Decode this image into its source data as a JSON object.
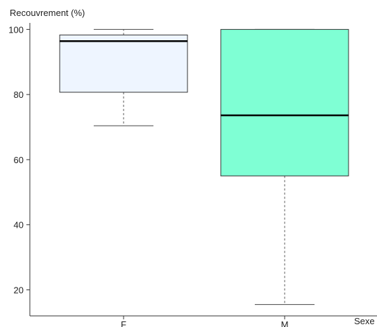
{
  "chart_data": {
    "type": "boxplot",
    "ylabel": "Recouvrement (%)",
    "xlabel": "Sexe",
    "ylim": [
      12,
      102
    ],
    "yticks": [
      20,
      40,
      60,
      80,
      100
    ],
    "categories": [
      "F",
      "M"
    ],
    "boxes": [
      {
        "category": "F",
        "whisker_low": 70.4,
        "q1": 80.7,
        "median": 96.4,
        "q3": 98.3,
        "whisker_high": 100,
        "color": "#eef5ff"
      },
      {
        "category": "M",
        "whisker_low": 15.5,
        "q1": 55.0,
        "median": 73.6,
        "q3": 100,
        "whisker_high": 100,
        "color": "#7fffd4"
      }
    ],
    "grid": false
  }
}
